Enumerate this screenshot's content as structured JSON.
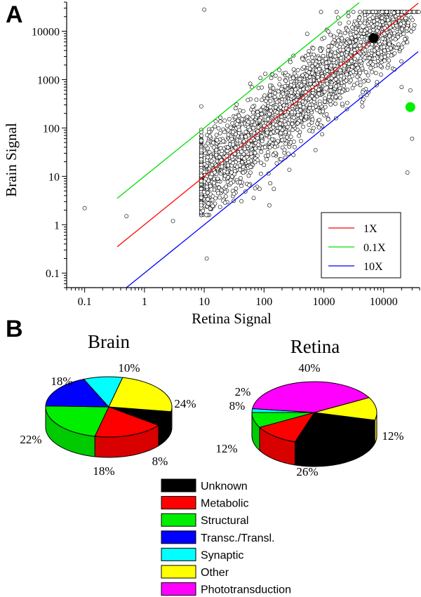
{
  "panels": {
    "a": "A",
    "b": "B"
  },
  "chart_data": [
    {
      "type": "scatter",
      "xlabel": "Retina Signal",
      "ylabel": "Brain Signal",
      "xscale": "log",
      "yscale": "log",
      "xlim": [
        0.05,
        40000
      ],
      "ylim": [
        0.05,
        40000
      ],
      "xticks": [
        0.1,
        1,
        10,
        100,
        1000,
        10000
      ],
      "xtick_labels": [
        "0.1",
        "1",
        "10",
        "100",
        "1000",
        "10000"
      ],
      "yticks": [
        0.1,
        1,
        10,
        100,
        1000,
        10000
      ],
      "ytick_labels": [
        "0.1",
        "1",
        "10",
        "100",
        "1000",
        "10000"
      ],
      "grid": false,
      "legend_position": "bottom-right",
      "reference_lines": [
        {
          "name": "1X",
          "ratio": 1,
          "color": "#ff0000",
          "x_range": [
            0.35,
            38000
          ]
        },
        {
          "name": "0.1X",
          "ratio": 10,
          "color": "#00dd00",
          "x_range": [
            0.35,
            3900
          ]
        },
        {
          "name": "10X",
          "ratio": 0.1,
          "color": "#0000ff",
          "x_range": [
            0.5,
            38000
          ]
        }
      ],
      "highlighted_points": [
        {
          "x": 6800,
          "y": 7200,
          "color": "#000000"
        },
        {
          "x": 28000,
          "y": 270,
          "color": "#00ee00"
        }
      ],
      "outlier_points": [
        {
          "x": 0.1,
          "y": 2.2
        },
        {
          "x": 10,
          "y": 28000
        },
        {
          "x": 11,
          "y": 0.2
        },
        {
          "x": 0.5,
          "y": 1.5
        },
        {
          "x": 3,
          "y": 1.2
        },
        {
          "x": 25000,
          "y": 12
        },
        {
          "x": 30000,
          "y": 60
        },
        {
          "x": 20000,
          "y": 700
        },
        {
          "x": 28000,
          "y": 600
        }
      ],
      "cloud": {
        "count": 2600,
        "marker_color": "#000000",
        "marker_fill": "#ffffff"
      }
    },
    {
      "type": "pie",
      "title": "Brain",
      "slices": [
        {
          "label": "Unknown",
          "value": 8,
          "text": "8%"
        },
        {
          "label": "Metabolic",
          "value": 18,
          "text": "18%"
        },
        {
          "label": "Structural",
          "value": 22,
          "text": "22%"
        },
        {
          "label": "Transc./Transl.",
          "value": 18,
          "text": "18%"
        },
        {
          "label": "Synaptic",
          "value": 10,
          "text": "10%"
        },
        {
          "label": "Other",
          "value": 24,
          "text": "24%"
        }
      ]
    },
    {
      "type": "pie",
      "title": "Retina",
      "slices": [
        {
          "label": "Unknown",
          "value": 26,
          "text": "26%"
        },
        {
          "label": "Metabolic",
          "value": 12,
          "text": "12%"
        },
        {
          "label": "Structural",
          "value": 8,
          "text": "8%"
        },
        {
          "label": "Synaptic",
          "value": 2,
          "text": "2%"
        },
        {
          "label": "Phototransduction",
          "value": 40,
          "text": "40%"
        },
        {
          "label": "Other",
          "value": 12,
          "text": "12%"
        }
      ]
    }
  ],
  "legend_categories": [
    {
      "label": "Unknown",
      "color": "#000000"
    },
    {
      "label": "Metabolic",
      "color": "#ff0000"
    },
    {
      "label": "Structural",
      "color": "#00ee00"
    },
    {
      "label": "Transc./Transl.",
      "color": "#0000ff"
    },
    {
      "label": "Synaptic",
      "color": "#00ffff"
    },
    {
      "label": "Other",
      "color": "#ffff00"
    },
    {
      "label": "Phototransduction",
      "color": "#ff00ff"
    }
  ]
}
